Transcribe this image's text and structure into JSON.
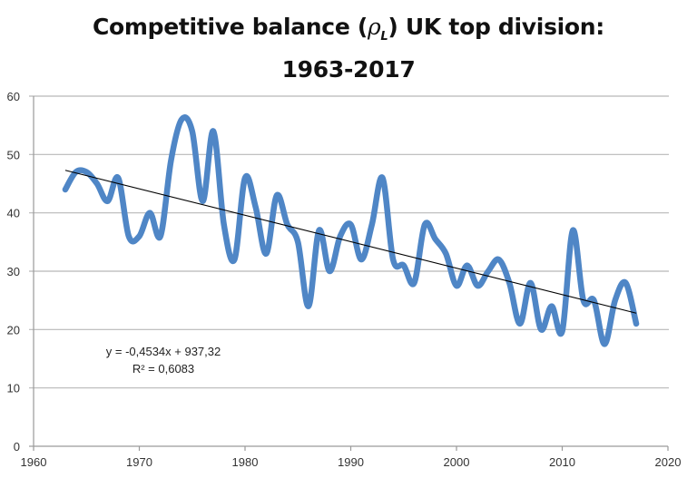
{
  "chart_data": {
    "type": "line",
    "title_main": "Competitive balance (",
    "title_symbol": "ρ",
    "title_subscript": "L",
    "title_after": ") UK top division:",
    "title_line2": "1963-2017",
    "xlabel": "",
    "ylabel": "",
    "xlim": [
      1960,
      2020
    ],
    "ylim": [
      0,
      60
    ],
    "xticks": [
      1960,
      1970,
      1980,
      1990,
      2000,
      2010,
      2020
    ],
    "yticks": [
      0,
      10,
      20,
      30,
      40,
      50,
      60
    ],
    "grid": "horizontal",
    "legend": "none",
    "series": [
      {
        "name": "Competitive balance",
        "color": "#4F86C6",
        "smooth": true,
        "x": [
          1963,
          1964,
          1965,
          1966,
          1967,
          1968,
          1969,
          1970,
          1971,
          1972,
          1973,
          1974,
          1975,
          1976,
          1977,
          1978,
          1979,
          1980,
          1981,
          1982,
          1983,
          1984,
          1985,
          1986,
          1987,
          1988,
          1989,
          1990,
          1991,
          1992,
          1993,
          1994,
          1995,
          1996,
          1997,
          1998,
          1999,
          2000,
          2001,
          2002,
          2003,
          2004,
          2005,
          2006,
          2007,
          2008,
          2009,
          2010,
          2011,
          2012,
          2013,
          2014,
          2015,
          2016,
          2017
        ],
        "y": [
          44,
          47,
          47,
          45,
          42,
          46,
          36,
          36,
          40,
          36,
          49,
          56,
          54,
          42,
          54,
          38,
          32,
          46,
          41,
          33,
          43,
          38,
          35,
          24,
          37,
          30,
          36,
          38,
          32,
          38,
          46,
          32,
          31,
          28,
          38,
          35.5,
          33,
          27.5,
          31,
          27.5,
          30,
          32,
          28,
          21,
          28,
          20,
          24,
          19.7,
          37,
          25,
          25,
          17.5,
          25,
          28,
          21
        ]
      }
    ],
    "trendline": {
      "type": "linear",
      "color": "#000000",
      "slope": -0.4534,
      "intercept": 937.32,
      "x_range": [
        1963,
        2017
      ],
      "equation_label": "y = -0,4534x + 937,32",
      "r2_label": "R² = 0,6083"
    }
  }
}
